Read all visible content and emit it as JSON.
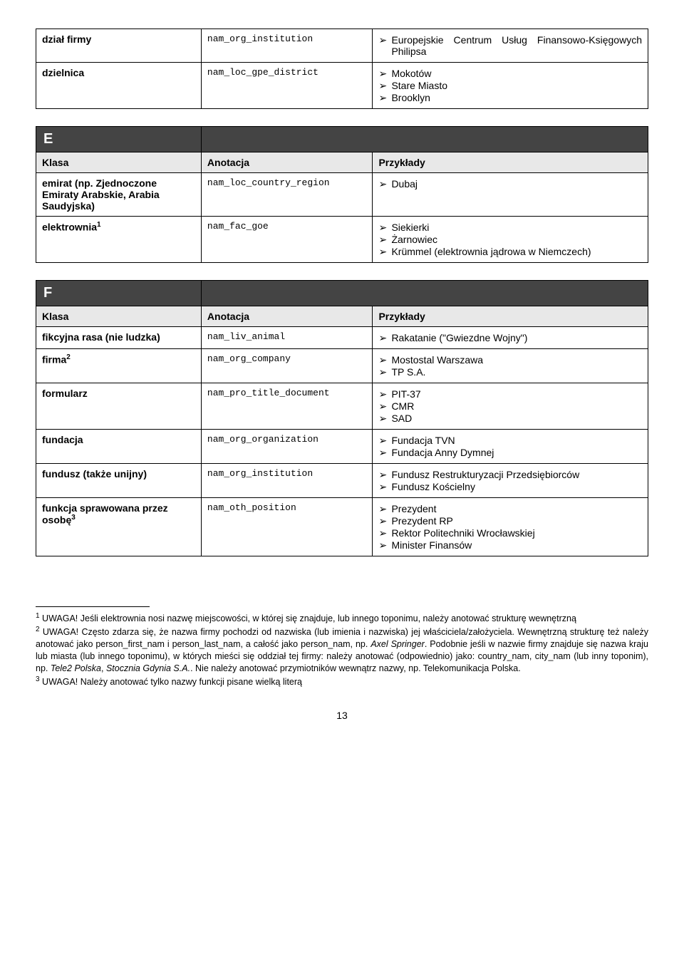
{
  "topTable": {
    "rows": [
      {
        "klasa": "dział firmy",
        "anotacja": "nam_org_institution",
        "examples": [
          {
            "text": "Europejskie Centrum Usług Finansowo-Księgowych Philipsa",
            "justify": true
          }
        ]
      },
      {
        "klasa": "dzielnica",
        "anotacja": "nam_loc_gpe_district",
        "examples": [
          {
            "text": "Mokotów"
          },
          {
            "text": "Stare Miasto"
          },
          {
            "text": "Brooklyn"
          }
        ]
      }
    ]
  },
  "sectionE": {
    "letter": "E",
    "headers": {
      "klasa": "Klasa",
      "anotacja": "Anotacja",
      "przyk": "Przykłady"
    },
    "rows": [
      {
        "klasa_html": "emirat (np. Zjednoczone Emiraty Arabskie, Arabia Saudyjska)",
        "anotacja": "nam_loc_country_region",
        "examples": [
          {
            "text": "Dubaj"
          }
        ]
      },
      {
        "klasa_html": "elektrownia",
        "sup": "1",
        "anotacja": "nam_fac_goe",
        "examples": [
          {
            "text": "Siekierki"
          },
          {
            "text": "Żarnowiec"
          },
          {
            "text": "Krümmel (elektrownia jądrowa w Niemczech)",
            "justify": true
          }
        ]
      }
    ]
  },
  "sectionF": {
    "letter": "F",
    "headers": {
      "klasa": "Klasa",
      "anotacja": "Anotacja",
      "przyk": "Przykłady"
    },
    "rows": [
      {
        "klasa_html": "fikcyjna rasa (nie ludzka)",
        "anotacja": "nam_liv_animal",
        "examples": [
          {
            "text": "Rakatanie (\"Gwiezdne Wojny\")"
          }
        ]
      },
      {
        "klasa_html": "firma",
        "sup": "2",
        "anotacja": "nam_org_company",
        "examples": [
          {
            "text": "Mostostal Warszawa"
          },
          {
            "text": "TP S.A."
          }
        ]
      },
      {
        "klasa_html": "formularz",
        "anotacja": "nam_pro_title_document",
        "examples": [
          {
            "text": "PIT-37"
          },
          {
            "text": "CMR"
          },
          {
            "text": "SAD"
          }
        ]
      },
      {
        "klasa_html": "fundacja",
        "anotacja": "nam_org_organization",
        "examples": [
          {
            "text": "Fundacja TVN"
          },
          {
            "text": "Fundacja Anny Dymnej"
          }
        ]
      },
      {
        "klasa_html": "fundusz (także unijny)",
        "anotacja": "nam_org_institution",
        "examples": [
          {
            "text": "Fundusz Restrukturyzacji Przedsiębiorców"
          },
          {
            "text": "Fundusz Kościelny"
          }
        ]
      },
      {
        "klasa_html": "funkcja sprawowana przez osobę",
        "sup": "3",
        "anotacja": "nam_oth_position",
        "examples": [
          {
            "text": "Prezydent"
          },
          {
            "text": "Prezydent RP"
          },
          {
            "text": "Rektor Politechniki Wrocławskiej"
          },
          {
            "text": "Minister Finansów"
          }
        ]
      }
    ]
  },
  "footnotes": {
    "n1": " UWAGA! Jeśli elektrownia nosi nazwę miejscowości, w której się znajduje, lub innego toponimu, należy anotować strukturę wewnętrzną",
    "n2": " UWAGA! Często zdarza się, że nazwa firmy pochodzi od nazwiska (lub imienia i nazwiska) jej właściciela/założyciela. Wewnętrzną strukturę też należy anotować jako person_first_nam i person_last_nam, a całość jako person_nam, np. ",
    "n2_italic1": "Axel Springer",
    "n2_cont": ". Podobnie jeśli w nazwie firmy znajduje się nazwa kraju lub miasta (lub innego toponimu), w których mieści się oddział tej firmy: należy anotować (odpowiednio) jako: country_nam, city_nam (lub inny toponim), np. ",
    "n2_italic2": "Tele2 Polska",
    "n2_cont2": ", ",
    "n2_italic3": "Stocznia Gdynia S.A.",
    "n2_cont3": ". Nie należy anotować przymiotników wewnątrz nazwy, np. Telekomunikacja Polska.",
    "n3": " UWAGA! Należy anotować tylko nazwy funkcji pisane wielką literą"
  },
  "pageNumber": "13"
}
